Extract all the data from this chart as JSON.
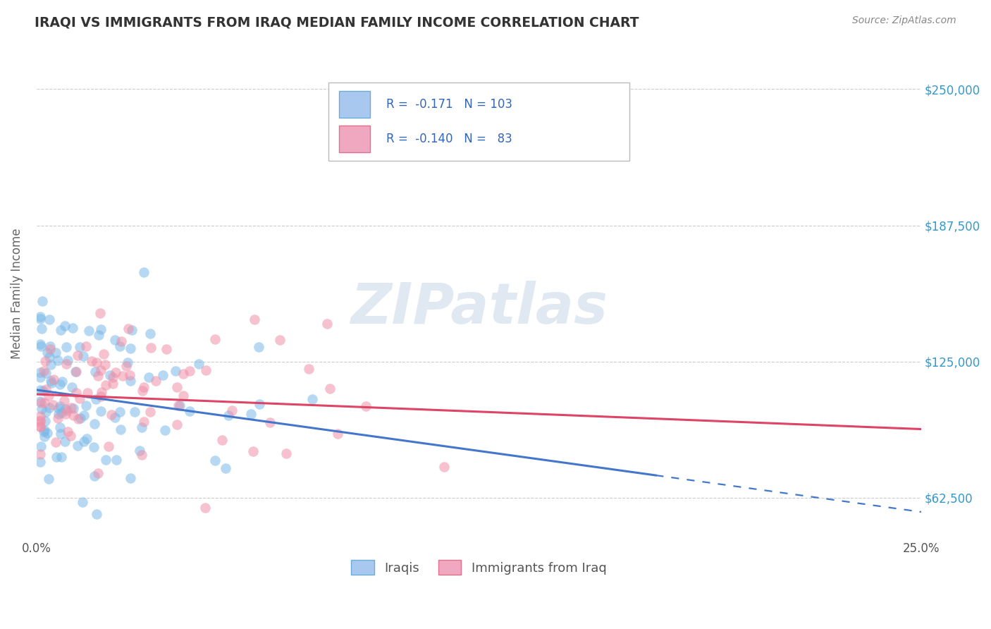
{
  "title": "IRAQI VS IMMIGRANTS FROM IRAQ MEDIAN FAMILY INCOME CORRELATION CHART",
  "source": "Source: ZipAtlas.com",
  "ylabel": "Median Family Income",
  "xlim": [
    0.0,
    0.25
  ],
  "ylim": [
    43750,
    268750
  ],
  "yticks": [
    62500,
    125000,
    187500,
    250000
  ],
  "ytick_labels": [
    "$62,500",
    "$125,000",
    "$187,500",
    "$250,000"
  ],
  "xticks": [
    0.0,
    0.05,
    0.1,
    0.15,
    0.2,
    0.25
  ],
  "xtick_labels": [
    "0.0%",
    "",
    "",
    "",
    "",
    "25.0%"
  ],
  "legend_entries": [
    {
      "color_fill": "#a8c8f0",
      "color_edge": "#6baed6",
      "R": "-0.171",
      "N": "103"
    },
    {
      "color_fill": "#f0a8c0",
      "color_edge": "#e07090",
      "R": "-0.140",
      "N": " 83"
    }
  ],
  "iraqis_color": "#7ab8e8",
  "iraqis_alpha": 0.55,
  "immigrants_color": "#f090a8",
  "immigrants_alpha": 0.55,
  "marker_size": 110,
  "trend_iraqis_color": "#4477cc",
  "trend_iraqis_x0": 0.0,
  "trend_iraqis_y0": 112000,
  "trend_iraqis_x1": 0.25,
  "trend_iraqis_y1": 56000,
  "trend_iraqis_solid_end": 0.175,
  "trend_immigrants_color": "#dd4466",
  "trend_immigrants_x0": 0.0,
  "trend_immigrants_y0": 110000,
  "trend_immigrants_x1": 0.25,
  "trend_immigrants_y1": 94000,
  "background_color": "#ffffff",
  "grid_color": "#cccccc",
  "watermark": "ZIPatlas",
  "watermark_color": "#c8d8e8",
  "title_color": "#333333",
  "axis_label_color": "#666666",
  "tick_color": "#555555",
  "legend_label_iraqis": "Iraqis",
  "legend_label_immigrants": "Immigrants from Iraq",
  "right_label_color": "#3399cc",
  "source_color": "#888888"
}
